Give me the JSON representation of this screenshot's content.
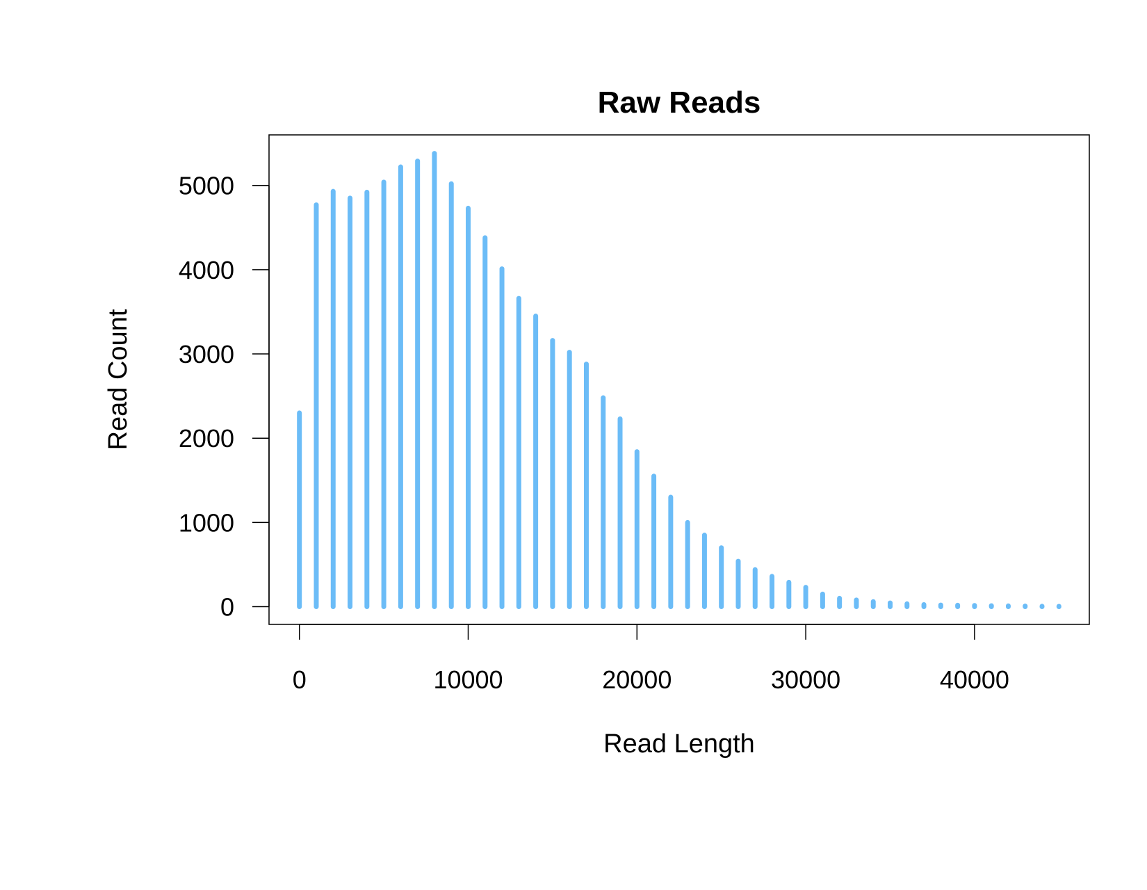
{
  "chart_data": {
    "type": "bar",
    "title": "Raw Reads",
    "xlabel": "Read Length",
    "ylabel": "Read Count",
    "xlim": [
      -1800,
      46800
    ],
    "ylim": [
      -210,
      5600
    ],
    "x_ticks": [
      0,
      10000,
      20000,
      30000,
      40000
    ],
    "y_ticks": [
      0,
      1000,
      2000,
      3000,
      4000,
      5000
    ],
    "x_tick_labels": [
      "0",
      "10000",
      "20000",
      "30000",
      "40000"
    ],
    "y_tick_labels": [
      "0",
      "1000",
      "2000",
      "3000",
      "4000",
      "5000"
    ],
    "grid": false,
    "bar_color": "#6bbcf7",
    "x": [
      0,
      1000,
      2000,
      3000,
      4000,
      5000,
      6000,
      7000,
      8000,
      9000,
      10000,
      11000,
      12000,
      13000,
      14000,
      15000,
      16000,
      17000,
      18000,
      19000,
      20000,
      21000,
      22000,
      23000,
      24000,
      25000,
      26000,
      27000,
      28000,
      29000,
      30000,
      31000,
      32000,
      33000,
      34000,
      35000,
      36000,
      37000,
      38000,
      39000,
      40000,
      41000,
      42000,
      43000,
      44000,
      45000
    ],
    "values": [
      2300,
      4770,
      4930,
      4850,
      4920,
      5040,
      5220,
      5290,
      5380,
      5020,
      4730,
      4380,
      4010,
      3660,
      3450,
      3160,
      3020,
      2880,
      2480,
      2230,
      1840,
      1550,
      1300,
      1000,
      850,
      700,
      540,
      440,
      360,
      290,
      230,
      150,
      100,
      80,
      60,
      45,
      35,
      25,
      20,
      18,
      15,
      12,
      10,
      8,
      6,
      5
    ]
  }
}
